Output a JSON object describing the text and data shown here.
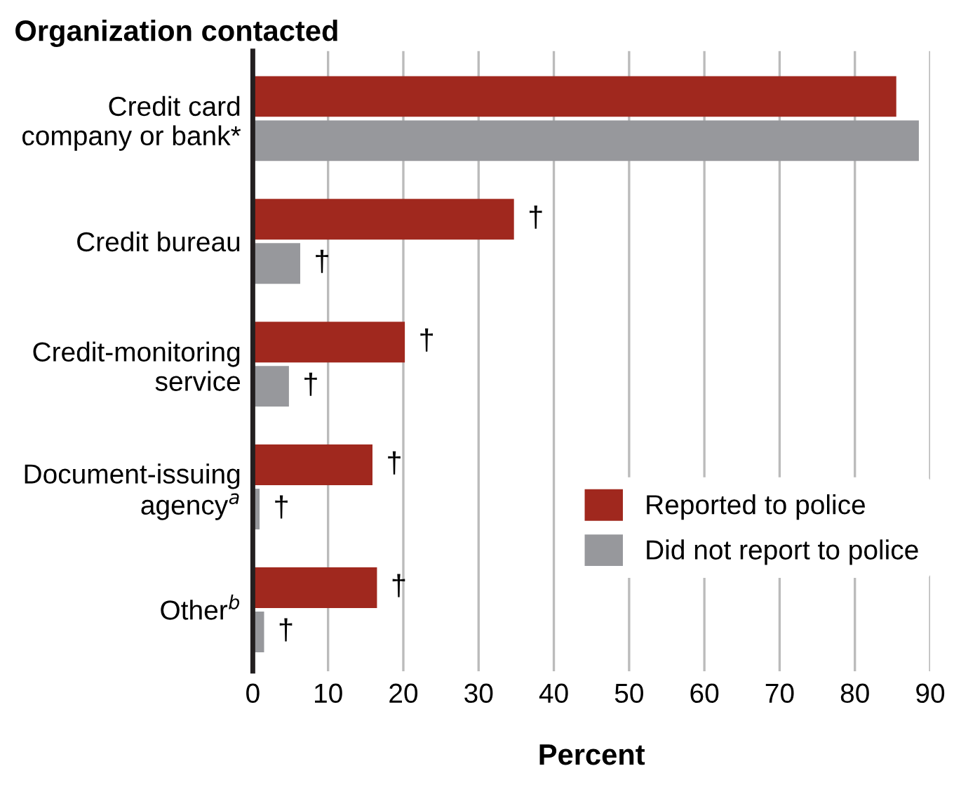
{
  "chart_data": {
    "type": "bar",
    "orientation": "horizontal",
    "ylabel": "Organization contacted",
    "xlabel": "Percent",
    "categories": [
      "Credit card\ncompany or bank*",
      "Credit bureau",
      "Credit-monitoring\nservice",
      "Document-issuing\nagency$^{a}$",
      "Other$^{b}$"
    ],
    "series": [
      {
        "name": "Reported to police",
        "color": "#a0281e",
        "values": [
          85.5,
          34.7,
          20.2,
          15.9,
          16.5
        ],
        "value_labels": [
          null,
          "†",
          "†",
          "†",
          "†"
        ]
      },
      {
        "name": "Did not report to police",
        "color": "#97989c",
        "values": [
          88.5,
          6.3,
          4.8,
          0.9,
          1.5
        ],
        "value_labels": [
          null,
          "†",
          "†",
          "†",
          "†"
        ]
      }
    ],
    "xlim": [
      0,
      90
    ],
    "xticks": [
      0,
      10,
      20,
      30,
      40,
      50,
      60,
      70,
      80,
      90
    ],
    "grid": "x",
    "legend": "bottom right"
  }
}
